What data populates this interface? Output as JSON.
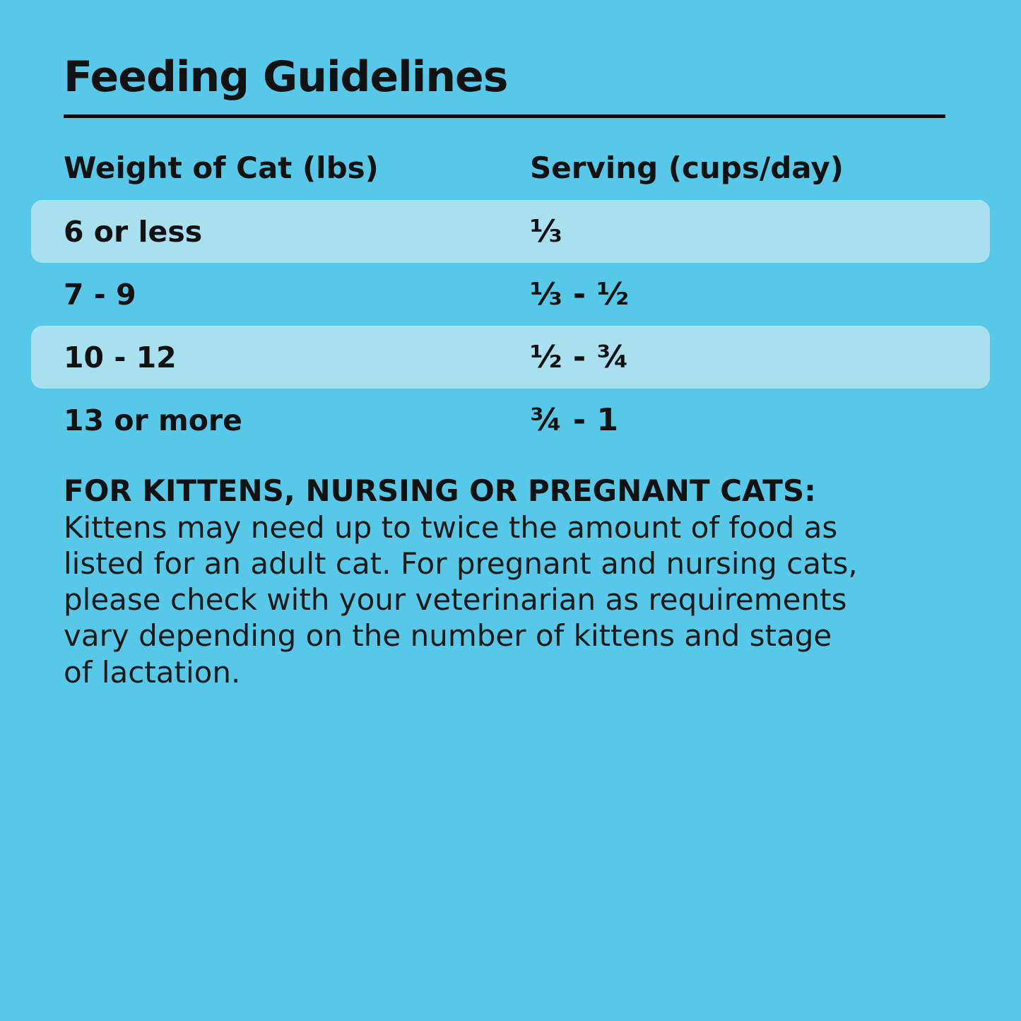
{
  "colors": {
    "background": "#58C8E8",
    "row_stripe": "#A9E0F0",
    "text": "#121212",
    "rule": "#0D0D0D"
  },
  "title": "Feeding Guidelines",
  "table": {
    "headers": [
      "Weight of Cat (lbs)",
      "Serving (cups/day)"
    ],
    "rows": [
      {
        "weight": "6 or less",
        "serving": "⅓"
      },
      {
        "weight": "7 - 9",
        "serving": "⅓ - ½"
      },
      {
        "weight": "10 - 12",
        "serving": "½ - ¾"
      },
      {
        "weight": "13 or more",
        "serving": "¾ - 1"
      }
    ]
  },
  "note": {
    "heading": "FOR KITTENS, NURSING OR PREGNANT CATS:",
    "lines": [
      "Kittens may need up to twice the amount of food as",
      "listed for an adult cat. For pregnant and nursing cats,",
      "please check with your veterinarian as requirements",
      "vary depending on the number of kittens and stage",
      "of lactation."
    ]
  }
}
